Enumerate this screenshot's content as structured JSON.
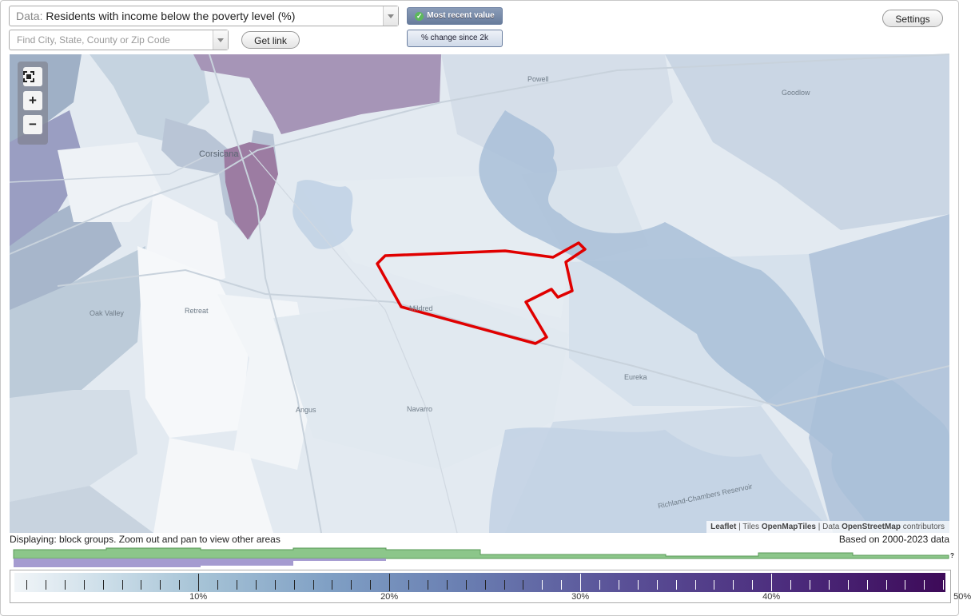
{
  "data_selector": {
    "prefix": "Data:",
    "value": "Residents with income below the poverty level (%)"
  },
  "search": {
    "placeholder": "Find City, State, County or Zip Code"
  },
  "buttons": {
    "get_link": "Get link",
    "settings": "Settings"
  },
  "mode": {
    "active": "Most recent value",
    "inactive": "% change since 2k"
  },
  "map": {
    "zoom_in": "+",
    "zoom_out": "−",
    "places": {
      "powell": "Powell",
      "goodlow": "Goodlow",
      "corsicana": "Corsicana",
      "oak_valley": "Oak Valley",
      "retreat": "Retreat",
      "mildred": "Mildred",
      "eureka": "Eureka",
      "angus": "Angus",
      "navarro": "Navarro",
      "reservoir": "Richland-Chambers Reservoir"
    },
    "attribution": {
      "leaflet": "Leaflet",
      "sep1": " | Tiles ",
      "tiles": "OpenMapTiles",
      "sep2": " | Data ",
      "data": "OpenStreetMap",
      "contributors": " contributors"
    },
    "highlight_color": "#e00000"
  },
  "footer": {
    "display_note": "Displaying: block groups. Zoom out and pan to view other areas",
    "data_years": "Based on 2000-2023 data",
    "help": "?"
  },
  "legend": {
    "min": 0,
    "max": 50,
    "tick_labels": [
      "10%",
      "20%",
      "30%",
      "40%",
      "50%"
    ],
    "colors": {
      "low": "#f1f5f8",
      "mid": "#7f9fc4",
      "high": "#3d0a58"
    }
  }
}
